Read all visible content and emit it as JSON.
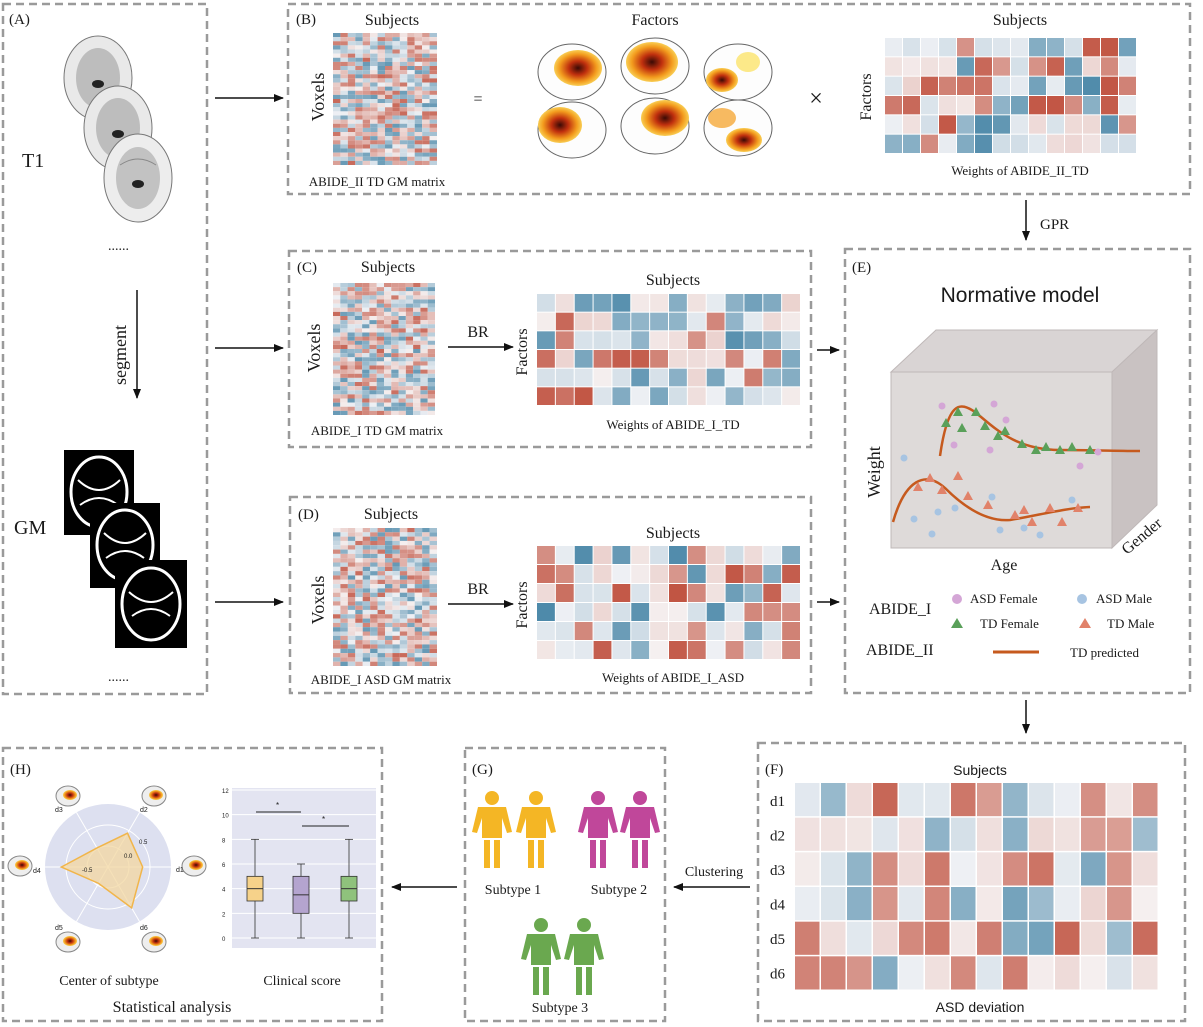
{
  "panels": {
    "a": {
      "tag": "(A)",
      "t1_label": "T1",
      "dots_top": "......",
      "segment_label": "segment",
      "gm_label": "GM",
      "dots_bottom": "......"
    },
    "b": {
      "tag": "(B)",
      "subjects_left": "Subjects",
      "voxels": "Voxels",
      "matrix_caption": "ABIDE_II TD GM matrix",
      "equals": "=",
      "factors_title": "Factors",
      "times": "×",
      "subjects_right": "Subjects",
      "factors_axis": "Factors",
      "weights_caption": "Weights of  ABIDE_II_TD"
    },
    "gpr_label": "GPR",
    "c": {
      "tag": "(C)",
      "subjects_left": "Subjects",
      "voxels": "Voxels",
      "matrix_caption": "ABIDE_I TD GM matrix",
      "br": "BR",
      "subjects_right": "Subjects",
      "factors_axis": "Factors",
      "weights_caption": "Weights of  ABIDE_I_TD"
    },
    "d": {
      "tag": "(D)",
      "subjects_left": "Subjects",
      "voxels": "Voxels",
      "matrix_caption": "ABIDE_I ASD GM matrix",
      "br": "BR",
      "subjects_right": "Subjects",
      "factors_axis": "Factors",
      "weights_caption": "Weights of  ABIDE_I_ASD"
    },
    "e": {
      "tag": "(E)",
      "title": "Normative model",
      "weight_axis": "Weight",
      "age_axis": "Age",
      "gender_axis": "Gender",
      "legend": {
        "abide1": "ABIDE_I",
        "abide2": "ABIDE_II",
        "asd_female": "ASD Female",
        "asd_male": "ASD Male",
        "td_female": "TD Female",
        "td_male": "TD Male",
        "td_predicted": "TD   predicted"
      }
    },
    "f": {
      "tag": "(F)",
      "subjects": "Subjects",
      "rows": [
        "d1",
        "d2",
        "d3",
        "d4",
        "d5",
        "d6"
      ],
      "caption": "ASD deviation"
    },
    "clustering_label": "Clustering",
    "g": {
      "tag": "(G)",
      "subtype1": "Subtype 1",
      "subtype2": "Subtype 2",
      "subtype3": "Subtype 3"
    },
    "h": {
      "tag": "(H)",
      "radar_caption": "Center of subtype",
      "box_caption": "Clinical score",
      "footer": "Statistical analysis",
      "radar_axes": [
        "d1",
        "d2",
        "d3",
        "d4",
        "d5",
        "d6"
      ],
      "radar_ticks": [
        "0.5",
        "0.0",
        "-0.5"
      ],
      "box_yticks": [
        "0",
        "2",
        "4",
        "6",
        "8",
        "10",
        "12"
      ],
      "sig_marks": [
        "*",
        "*"
      ]
    }
  },
  "colors": {
    "dash": "#9a9a9a",
    "red": "#c0513f",
    "blue": "#4e7fb6",
    "teal": "#4f8aa0",
    "yellow": "#f4b625",
    "magenta": "#c0479a",
    "green": "#6aa84f",
    "curve": "#c65a1e"
  }
}
